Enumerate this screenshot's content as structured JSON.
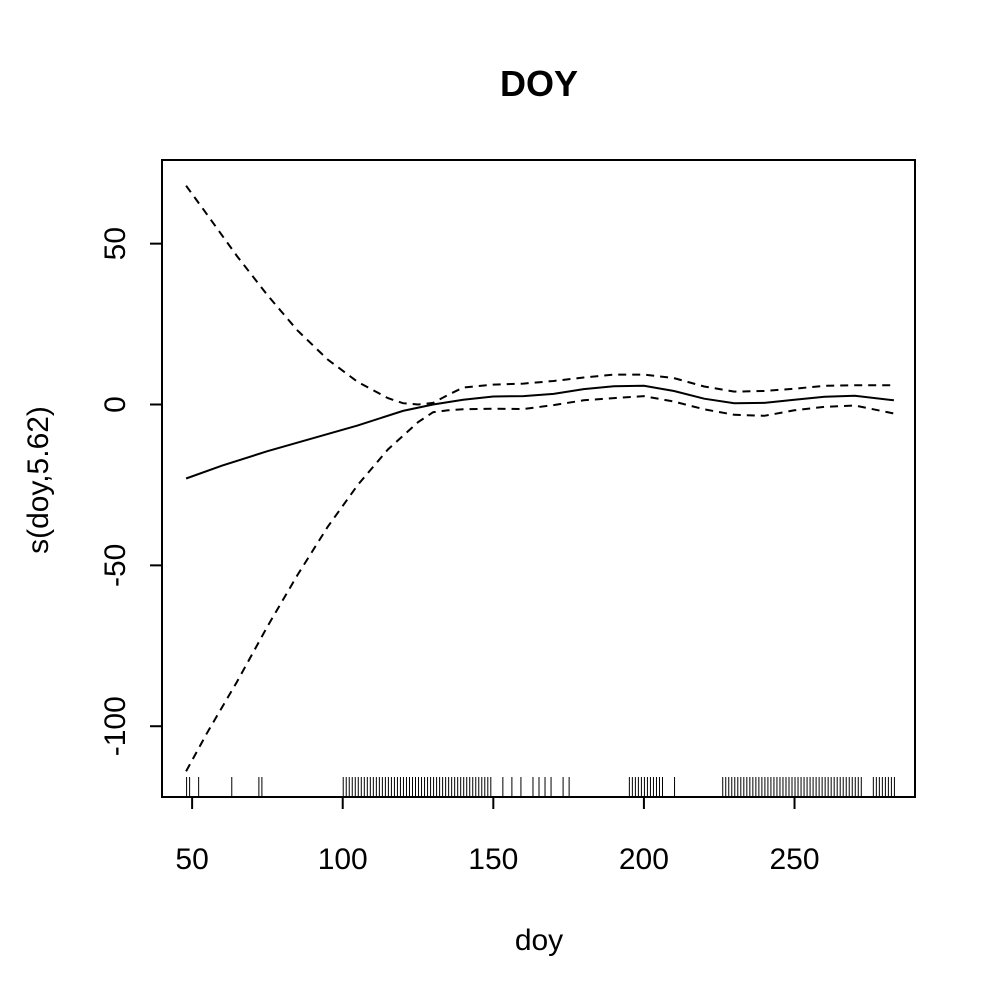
{
  "chart_data": {
    "type": "line",
    "title": "DOY",
    "xlabel": "doy",
    "ylabel": "s(doy,5.62)",
    "xlim": [
      40,
      290
    ],
    "ylim": [
      -122,
      76
    ],
    "x_ticks": [
      50,
      100,
      150,
      200,
      250
    ],
    "y_ticks": [
      -100,
      -50,
      0,
      50
    ],
    "grid": false,
    "legend": "none",
    "series": [
      {
        "style": "solid",
        "x": [
          48,
          60,
          75,
          90,
          105,
          120,
          130,
          140,
          150,
          160,
          170,
          180,
          190,
          200,
          210,
          220,
          230,
          240,
          250,
          260,
          270,
          283
        ],
        "values": [
          -23,
          -19,
          -14.5,
          -10.5,
          -6.5,
          -2,
          0,
          1.5,
          2.5,
          2.6,
          3.3,
          4.8,
          5.7,
          5.8,
          4.2,
          1.8,
          0.4,
          0.5,
          1.5,
          2.4,
          2.7,
          1.3
        ]
      },
      {
        "style": "dashed",
        "x": [
          48,
          55,
          65,
          75,
          85,
          95,
          105,
          115,
          120,
          125,
          130,
          135,
          140,
          150,
          160,
          170,
          180,
          190,
          200,
          210,
          220,
          230,
          240,
          250,
          260,
          270,
          283
        ],
        "values": [
          68,
          59,
          46,
          34,
          23,
          14,
          7,
          2,
          0.4,
          0,
          0.5,
          3,
          5.3,
          6.2,
          6.5,
          7.3,
          8.4,
          9.3,
          9.3,
          8.2,
          5.6,
          4,
          4.2,
          4.9,
          5.8,
          6,
          6
        ]
      },
      {
        "style": "dashed",
        "x": [
          48,
          55,
          65,
          75,
          85,
          95,
          105,
          115,
          125,
          130,
          135,
          140,
          150,
          160,
          170,
          180,
          190,
          200,
          210,
          220,
          230,
          240,
          250,
          260,
          270,
          283
        ],
        "values": [
          -114,
          -102,
          -86,
          -69,
          -53,
          -38,
          -25,
          -14,
          -5.5,
          -2.4,
          -1.8,
          -1.5,
          -1.3,
          -1.4,
          -0.2,
          1.3,
          2,
          2.6,
          0.9,
          -1.5,
          -3.2,
          -3.5,
          -1.8,
          -0.7,
          -0.3,
          -2.8
        ]
      }
    ],
    "rug": [
      48,
      49,
      52,
      63,
      72,
      73,
      100,
      101,
      102,
      103,
      104,
      105,
      106,
      107,
      108,
      109,
      110,
      111,
      112,
      113,
      114,
      115,
      116,
      117,
      118,
      119,
      120,
      121,
      122,
      123,
      124,
      125,
      126,
      127,
      128,
      129,
      130,
      131,
      132,
      133,
      134,
      135,
      136,
      137,
      138,
      139,
      140,
      141,
      142,
      143,
      144,
      145,
      146,
      147,
      148,
      149,
      153,
      156,
      159,
      163,
      165,
      167,
      169,
      173,
      175,
      195,
      196,
      197,
      198,
      199,
      200,
      201,
      202,
      203,
      204,
      205,
      206,
      210,
      226,
      227,
      228,
      229,
      230,
      231,
      232,
      233,
      234,
      235,
      236,
      237,
      238,
      239,
      240,
      241,
      242,
      243,
      244,
      245,
      246,
      247,
      248,
      249,
      250,
      251,
      252,
      253,
      254,
      255,
      256,
      257,
      258,
      259,
      260,
      261,
      262,
      263,
      264,
      265,
      266,
      267,
      268,
      269,
      270,
      271,
      272,
      276,
      277,
      278,
      279,
      280,
      281,
      282,
      283
    ]
  }
}
